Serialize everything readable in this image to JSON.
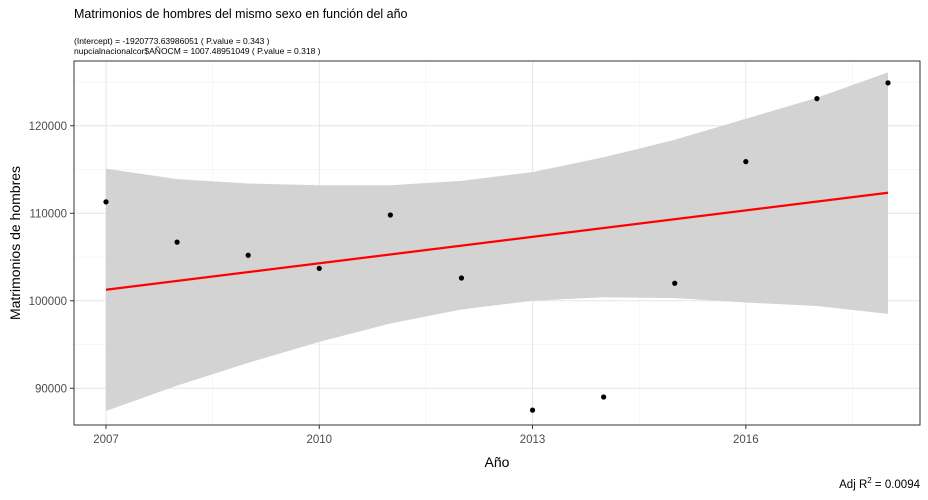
{
  "chart_data": {
    "type": "scatter",
    "title": "Matrimonios de hombres del mismo sexo en función del año",
    "subtitle_lines": [
      "(Intercept) = -1920773.63986051 ( P.value = 0.343 )",
      "nupcialnacionalcor$AÑOCM = 1007.48951049 ( P.value = 0.318 )"
    ],
    "xlabel": "Año",
    "ylabel": "Matrimonios de hombres",
    "xlim": [
      2006.55,
      2018.45
    ],
    "ylim": [
      85800,
      127400
    ],
    "x_ticks": [
      2007,
      2010,
      2013,
      2016
    ],
    "y_ticks": [
      90000,
      100000,
      110000,
      120000
    ],
    "x_tick_labels": [
      "2007",
      "2010",
      "2013",
      "2016"
    ],
    "y_tick_labels": [
      "90000",
      "100000",
      "110000",
      "120000"
    ],
    "grid": true,
    "points": {
      "x": [
        2007,
        2008,
        2009,
        2010,
        2011,
        2012,
        2013,
        2014,
        2015,
        2016,
        2017,
        2018
      ],
      "y": [
        111300,
        106700,
        105200,
        103700,
        109800,
        102600,
        87500,
        89000,
        102000,
        115900,
        123100,
        124900
      ]
    },
    "fit": {
      "intercept": -1920773.63986051,
      "slope": 1007.48951049,
      "x": [
        2007,
        2018
      ],
      "color": "#ff0000"
    },
    "confidence_band": {
      "x": [
        2007,
        2008,
        2009,
        2010,
        2011,
        2012,
        2013,
        2014,
        2015,
        2016,
        2017,
        2018
      ],
      "upper": [
        115100,
        113900,
        113400,
        113200,
        113200,
        113700,
        114700,
        116400,
        118400,
        120800,
        123200,
        126100
      ],
      "lower": [
        87400,
        90300,
        92900,
        95300,
        97400,
        99000,
        100000,
        100400,
        100300,
        99800,
        99400,
        98500
      ],
      "color": "#d3d3d3"
    },
    "r2_label": "Adj R",
    "r2_sup": "2",
    "r2_value": " = 0.0094"
  }
}
